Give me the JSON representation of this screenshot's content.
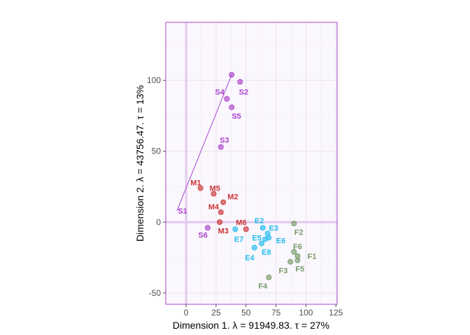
{
  "chart_data": {
    "type": "scatter",
    "xlabel": "Dimension 1.   λ = 91949.83.  τ = 27%",
    "ylabel": "Dimension 2.   λ = 43756.47.  τ = 13%",
    "xlim": [
      -17,
      126
    ],
    "ylim": [
      -58,
      141
    ],
    "x_ticks": [
      0,
      25,
      50,
      75,
      100,
      125
    ],
    "y_ticks": [
      -50,
      0,
      50,
      100
    ],
    "grid": true,
    "reference_lines": {
      "x": 0,
      "y": 0
    },
    "groups": [
      {
        "color": "#aa44cc",
        "points": [
          {
            "label": "S1",
            "x": 38,
            "y": 104,
            "lx": -3,
            "ly": 8
          },
          {
            "label": "S2",
            "x": 45,
            "y": 99,
            "lx": 48,
            "ly": 92
          },
          {
            "label": "S3",
            "x": 29,
            "y": 53,
            "lx": 32,
            "ly": 58
          },
          {
            "label": "S4",
            "x": 34,
            "y": 87,
            "lx": 28,
            "ly": 92
          },
          {
            "label": "S5",
            "x": 38,
            "y": 81,
            "lx": 42,
            "ly": 75
          },
          {
            "label": "S6",
            "x": 18,
            "y": -4,
            "lx": 14,
            "ly": -9
          }
        ]
      },
      {
        "color": "#cc3333",
        "points": [
          {
            "label": "M1",
            "x": 12,
            "y": 24,
            "lx": 8,
            "ly": 28
          },
          {
            "label": "M2",
            "x": 31,
            "y": 14,
            "lx": 39,
            "ly": 18
          },
          {
            "label": "M3",
            "x": 28,
            "y": 0,
            "lx": 31,
            "ly": -6
          },
          {
            "label": "M4",
            "x": 29,
            "y": 7,
            "lx": 23,
            "ly": 11
          },
          {
            "label": "M5",
            "x": 23,
            "y": 20,
            "lx": 24,
            "ly": 24
          },
          {
            "label": "M6",
            "x": 50,
            "y": -5,
            "lx": 46,
            "ly": 0
          }
        ]
      },
      {
        "color": "#22bbee",
        "points": [
          {
            "label": "E2",
            "x": 64,
            "y": -4,
            "lx": 61,
            "ly": 1
          },
          {
            "label": "E3",
            "x": 68,
            "y": -8,
            "lx": 73,
            "ly": -4
          },
          {
            "label": "E4",
            "x": 57,
            "y": -18,
            "lx": 53,
            "ly": -25
          },
          {
            "label": "E5",
            "x": 63,
            "y": -15,
            "lx": 59,
            "ly": -11
          },
          {
            "label": "E6",
            "x": 69,
            "y": -11,
            "lx": 79,
            "ly": -13
          },
          {
            "label": "E7",
            "x": 41,
            "y": -5,
            "lx": 44,
            "ly": -12
          },
          {
            "label": "E8",
            "x": 66,
            "y": -12,
            "lx": 67,
            "ly": -21
          }
        ]
      },
      {
        "color": "#779966",
        "points": [
          {
            "label": "F1",
            "x": 93,
            "y": -24,
            "lx": 105,
            "ly": -24
          },
          {
            "label": "F2",
            "x": 90,
            "y": -1,
            "lx": 94,
            "ly": -7
          },
          {
            "label": "F3",
            "x": 87,
            "y": -28,
            "lx": 81,
            "ly": -34
          },
          {
            "label": "F4",
            "x": 69,
            "y": -39,
            "lx": 64,
            "ly": -45
          },
          {
            "label": "F5",
            "x": 93,
            "y": -27,
            "lx": 95,
            "ly": -33
          },
          {
            "label": "F6",
            "x": 90,
            "y": -21,
            "lx": 93,
            "ly": -17
          }
        ]
      }
    ]
  }
}
